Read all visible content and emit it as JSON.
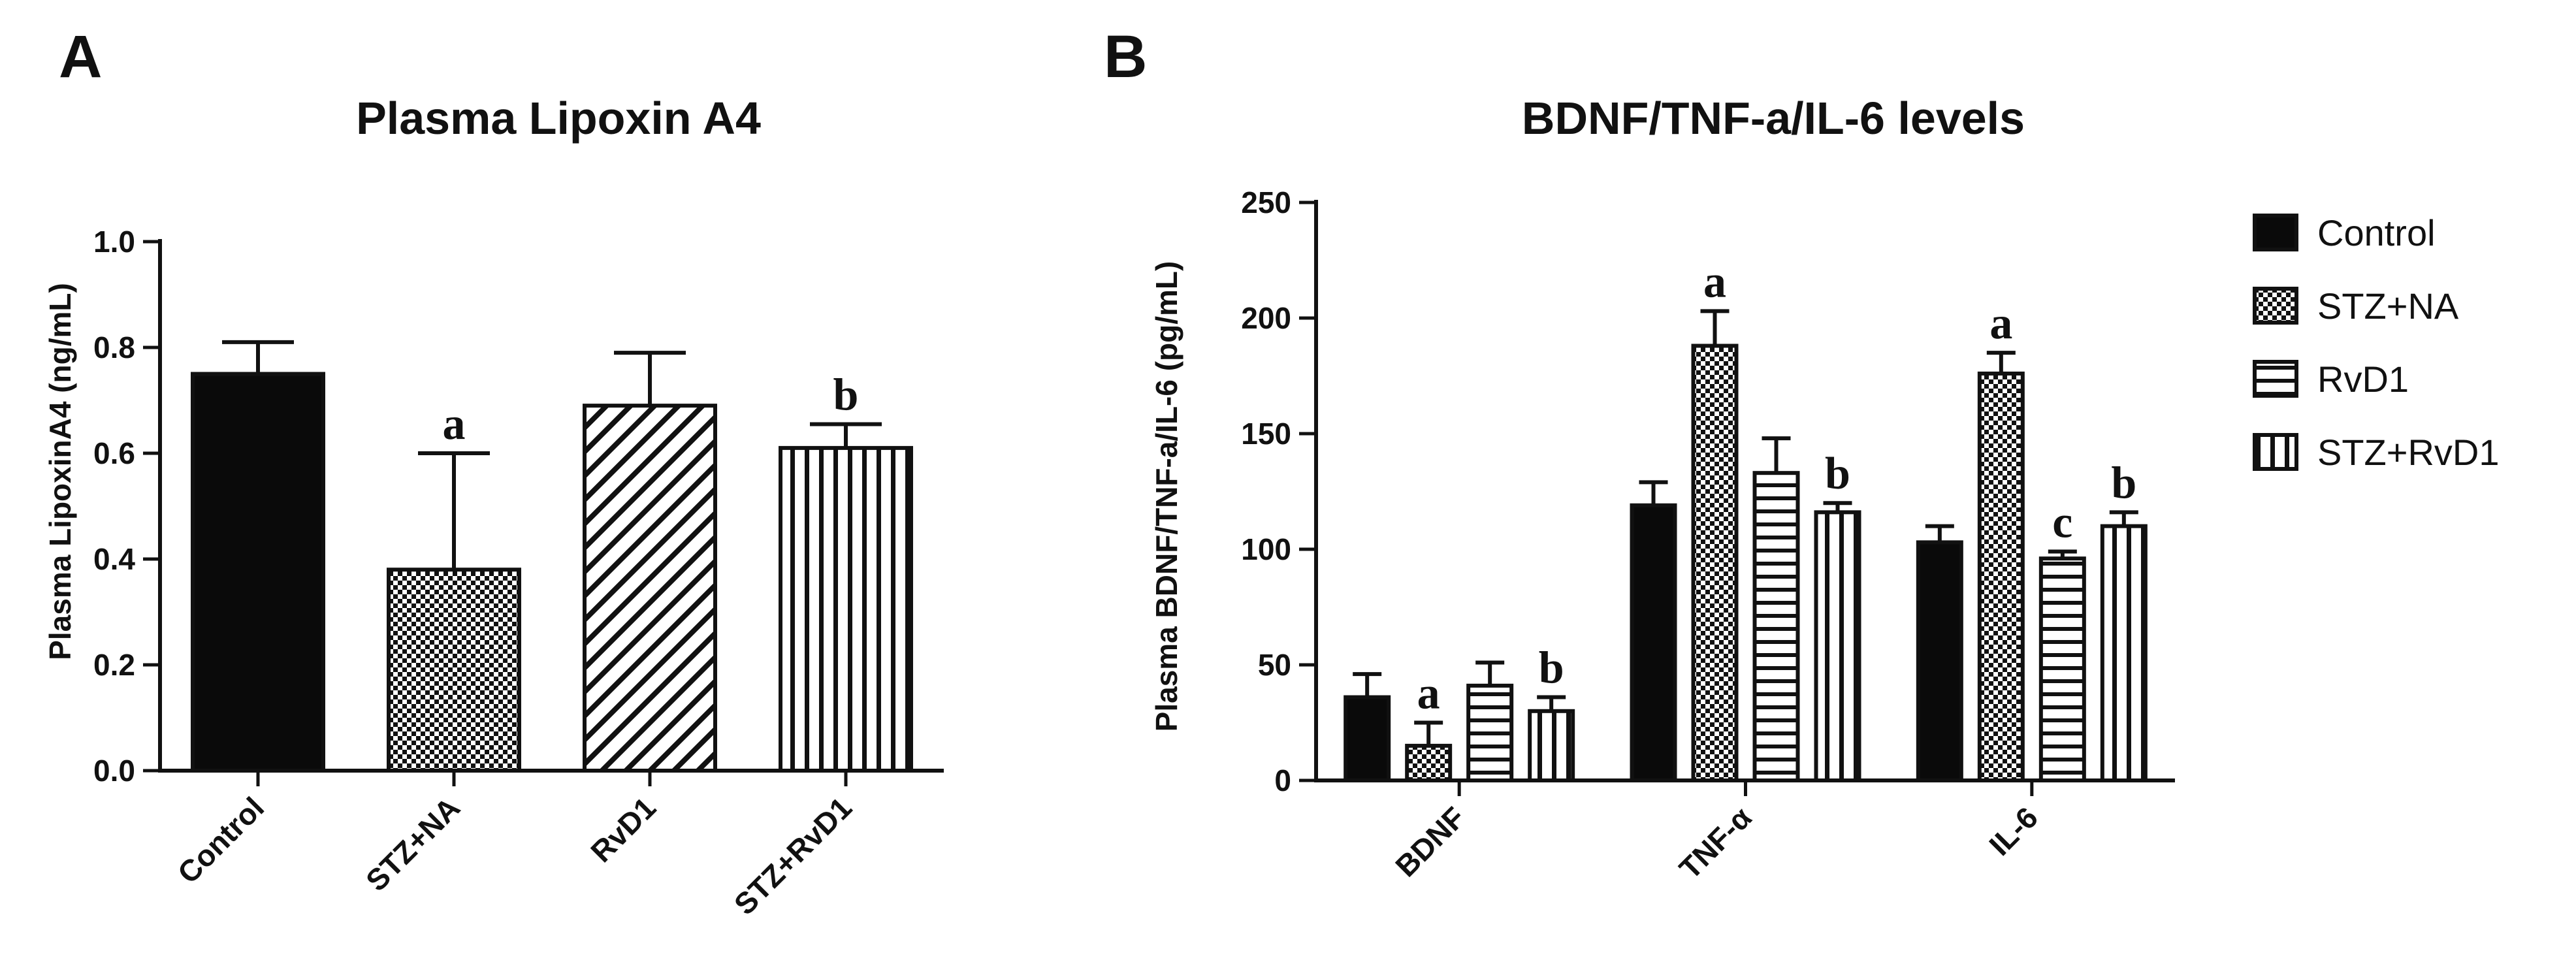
{
  "chart_data": [
    {
      "panel": "A",
      "type": "bar",
      "title": "Plasma Lipoxin A4",
      "ylabel": "Plasma LipoxinA4 (ng/mL)",
      "xlabel": "",
      "ylim": [
        0,
        1.0
      ],
      "yticks": [
        "0.0",
        "0.2",
        "0.4",
        "0.6",
        "0.8",
        "1.0"
      ],
      "categories": [
        "Control",
        "STZ+NA",
        "RvD1",
        "STZ+RvD1"
      ],
      "values": [
        0.75,
        0.38,
        0.69,
        0.61
      ],
      "errors": [
        0.06,
        0.22,
        0.1,
        0.045
      ],
      "significance": [
        "",
        "a",
        "",
        "b"
      ],
      "patterns": [
        "solid",
        "checker",
        "diagonal",
        "vertical"
      ]
    },
    {
      "panel": "B",
      "type": "bar",
      "title": "BDNF/TNF-a/IL-6 levels",
      "ylabel": "Plasma BDNF/TNF-a/IL-6 (pg/mL)",
      "xlabel": "",
      "ylim": [
        0,
        250
      ],
      "yticks": [
        "0",
        "50",
        "100",
        "150",
        "200",
        "250"
      ],
      "categories": [
        "BDNF",
        "TNF-α",
        "IL-6"
      ],
      "series": [
        {
          "name": "Control",
          "pattern": "solid",
          "values": [
            36,
            119,
            103
          ],
          "errors": [
            10,
            10,
            7
          ],
          "significance": [
            "",
            "",
            ""
          ]
        },
        {
          "name": "STZ+NA",
          "pattern": "checker",
          "values": [
            15,
            188,
            176
          ],
          "errors": [
            10,
            15,
            9
          ],
          "significance": [
            "a",
            "a",
            "a"
          ]
        },
        {
          "name": "RvD1",
          "pattern": "horizontal",
          "values": [
            41,
            133,
            96
          ],
          "errors": [
            10,
            15,
            3
          ],
          "significance": [
            "",
            "",
            "c"
          ]
        },
        {
          "name": "STZ+RvD1",
          "pattern": "vertical",
          "values": [
            30,
            116,
            110
          ],
          "errors": [
            6,
            4,
            6
          ],
          "significance": [
            "b",
            "b",
            "b"
          ]
        }
      ],
      "legend_position": "right"
    }
  ]
}
